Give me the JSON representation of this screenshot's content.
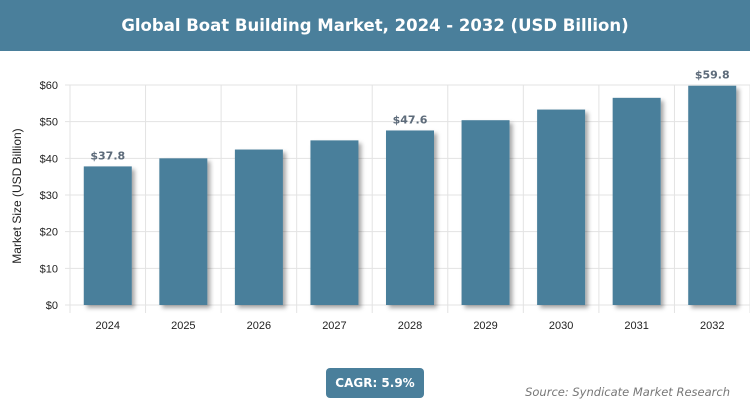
{
  "header": {
    "title": "Global Boat Building Market, 2024 - 2032 (USD Billion)"
  },
  "chart_data": {
    "type": "bar",
    "title": "Global Boat Building Market, 2024 - 2032 (USD Billion)",
    "xlabel": "",
    "ylabel": "Market Size (USD Billion)",
    "categories": [
      "2024",
      "2025",
      "2026",
      "2027",
      "2028",
      "2029",
      "2030",
      "2031",
      "2032"
    ],
    "values": [
      37.8,
      40.0,
      42.4,
      44.9,
      47.6,
      50.4,
      53.3,
      56.5,
      59.8
    ],
    "data_labels": {
      "2024": "$37.8",
      "2028": "$47.6",
      "2032": "$59.8"
    },
    "ylim": [
      0,
      60
    ],
    "yticks": [
      "$0",
      "$10",
      "$20",
      "$30",
      "$40",
      "$50",
      "$60"
    ],
    "grid": true,
    "bar_color": "#4a7f9b"
  },
  "footer": {
    "cagr": "CAGR: 5.9%",
    "source": "Source: Syndicate Market Research"
  }
}
